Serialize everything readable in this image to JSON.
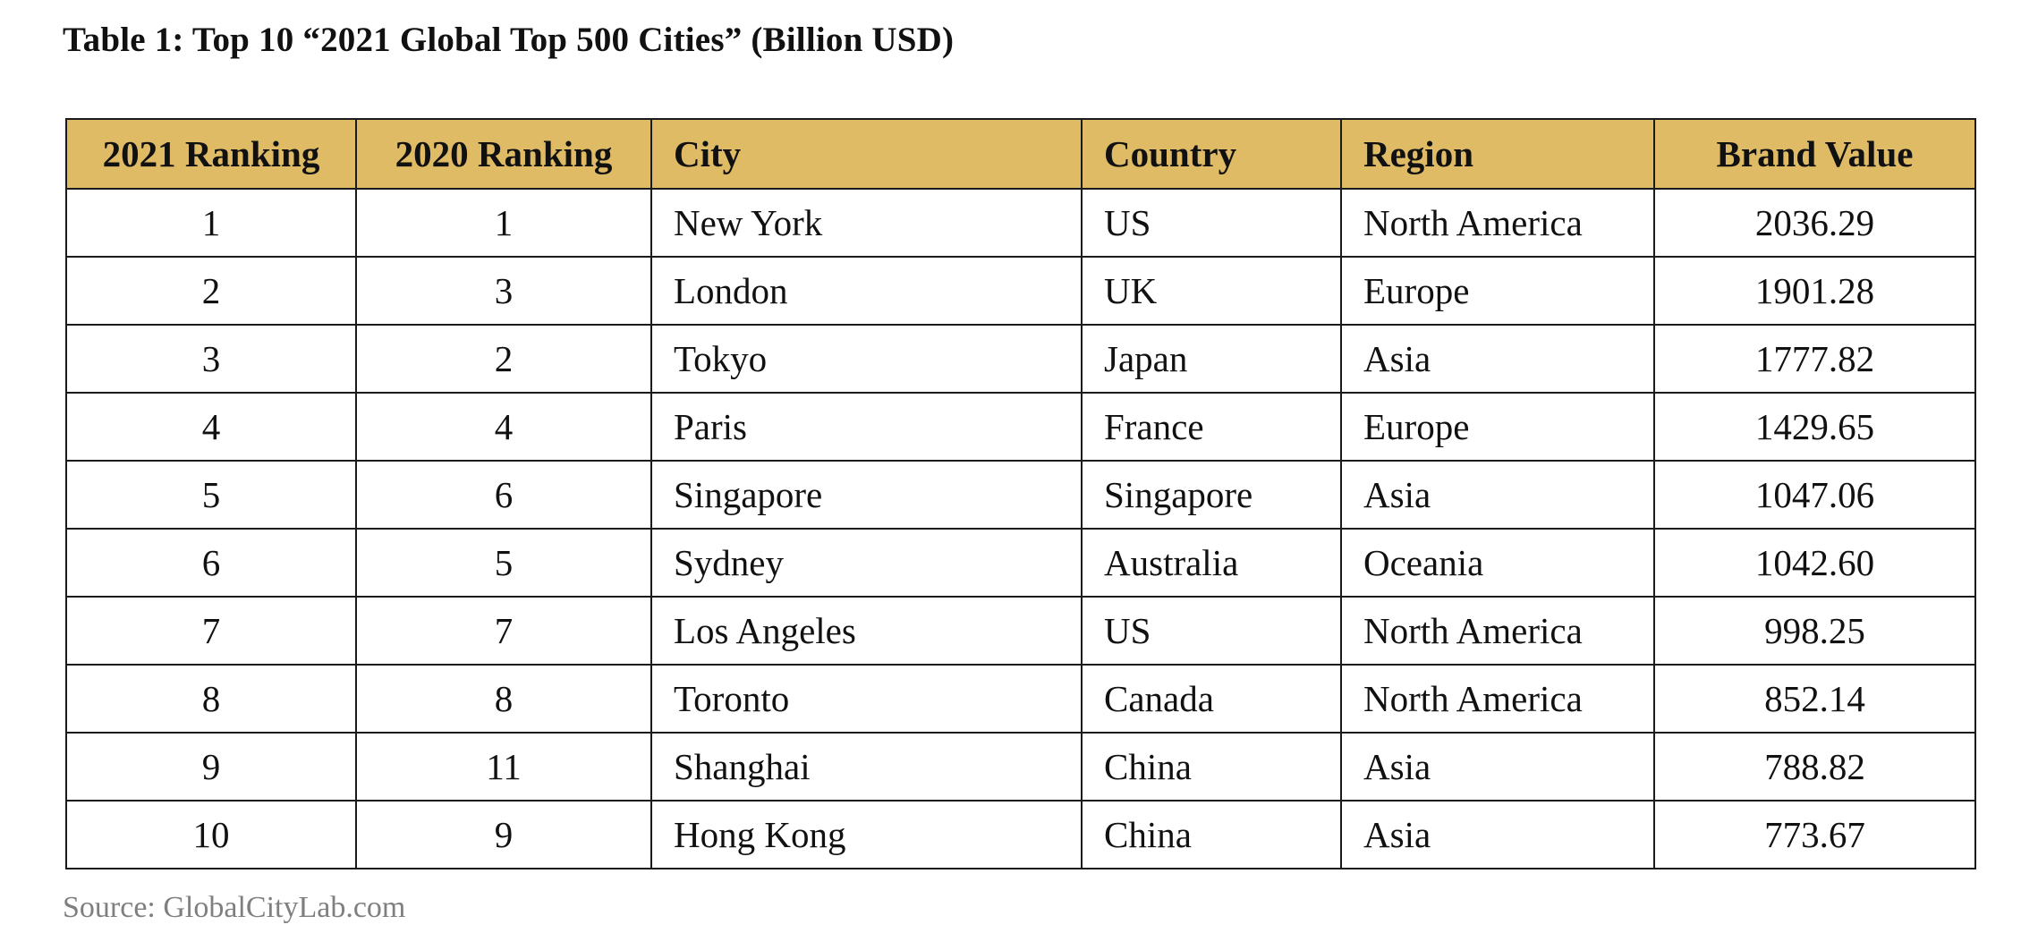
{
  "title": "Table 1: Top 10 “2021 Global Top 500 Cities” (Billion USD)",
  "colors": {
    "header_background": "#dfbb65",
    "border": "#1a1a1a",
    "source_text": "#7f7f7f"
  },
  "table": {
    "headers": [
      "2021 Ranking",
      "2020 Ranking",
      "City",
      "Country",
      "Region",
      "Brand Value"
    ],
    "rows": [
      [
        "1",
        "1",
        "New York",
        "US",
        "North America",
        "2036.29"
      ],
      [
        "2",
        "3",
        "London",
        "UK",
        "Europe",
        "1901.28"
      ],
      [
        "3",
        "2",
        "Tokyo",
        "Japan",
        "Asia",
        "1777.82"
      ],
      [
        "4",
        "4",
        "Paris",
        "France",
        "Europe",
        "1429.65"
      ],
      [
        "5",
        "6",
        "Singapore",
        "Singapore",
        "Asia",
        "1047.06"
      ],
      [
        "6",
        "5",
        "Sydney",
        "Australia",
        "Oceania",
        "1042.60"
      ],
      [
        "7",
        "7",
        "Los Angeles",
        "US",
        "North America",
        "998.25"
      ],
      [
        "8",
        "8",
        "Toronto",
        "Canada",
        "North America",
        "852.14"
      ],
      [
        "9",
        "11",
        "Shanghai",
        "China",
        "Asia",
        "788.82"
      ],
      [
        "10",
        "9",
        "Hong Kong",
        "China",
        "Asia",
        "773.67"
      ]
    ]
  },
  "source": "Source: GlobalCityLab.com"
}
